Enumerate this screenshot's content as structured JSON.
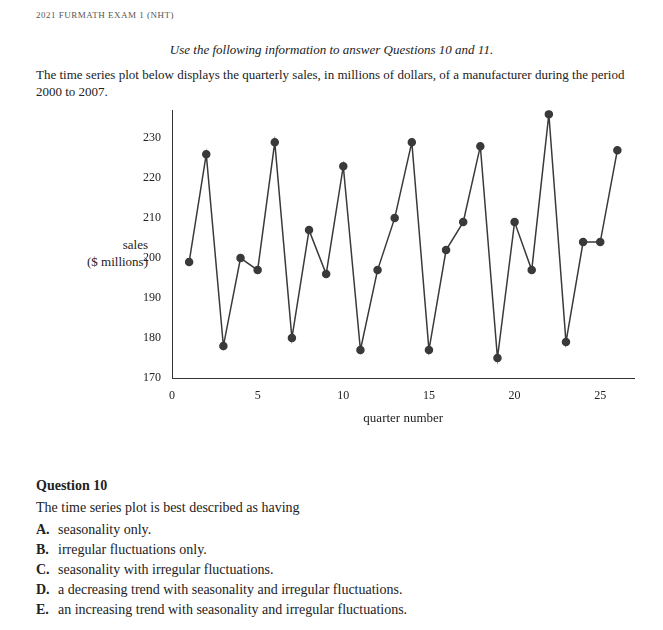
{
  "header": "2021 FURMATH EXAM 1 (NHT)",
  "intro": [
    "Use the following information to answer Questions 10 and 11.",
    "The time series plot below displays the quarterly sales, in millions of dollars, of a manufacturer during the period 2000 to 2007."
  ],
  "chart_data": {
    "type": "line",
    "x": [
      1,
      2,
      3,
      4,
      5,
      6,
      7,
      8,
      9,
      10,
      11,
      12,
      13,
      14,
      15,
      16,
      17,
      18,
      19,
      20,
      21,
      22,
      23,
      24,
      25,
      26
    ],
    "values": [
      199,
      226,
      178,
      200,
      197,
      229,
      180,
      207,
      196,
      223,
      177,
      197,
      210,
      229,
      177,
      202,
      209,
      228,
      175,
      209,
      197,
      236,
      179,
      204,
      204,
      227
    ],
    "color": "#3a3a3a",
    "marker": "circle",
    "line_style": "solid",
    "xlabel": "quarter number",
    "ylabel": [
      "sales",
      "($ millions)"
    ],
    "xlim": [
      0,
      27
    ],
    "xticks": [
      0,
      5,
      10,
      15,
      20,
      25
    ],
    "ylim": [
      170,
      237
    ],
    "yticks": [
      170,
      180,
      190,
      200,
      210,
      220,
      230
    ],
    "grid": false
  },
  "question": {
    "title": "Question 10",
    "text": "The time series plot is best described as having",
    "options": [
      [
        "A.",
        "seasonality only."
      ],
      [
        "B.",
        "irregular fluctuations only."
      ],
      [
        "C.",
        "seasonality with irregular fluctuations."
      ],
      [
        "D.",
        "a decreasing trend with seasonality and irregular fluctuations."
      ],
      [
        "E.",
        "an increasing trend with seasonality and irregular fluctuations."
      ]
    ]
  }
}
